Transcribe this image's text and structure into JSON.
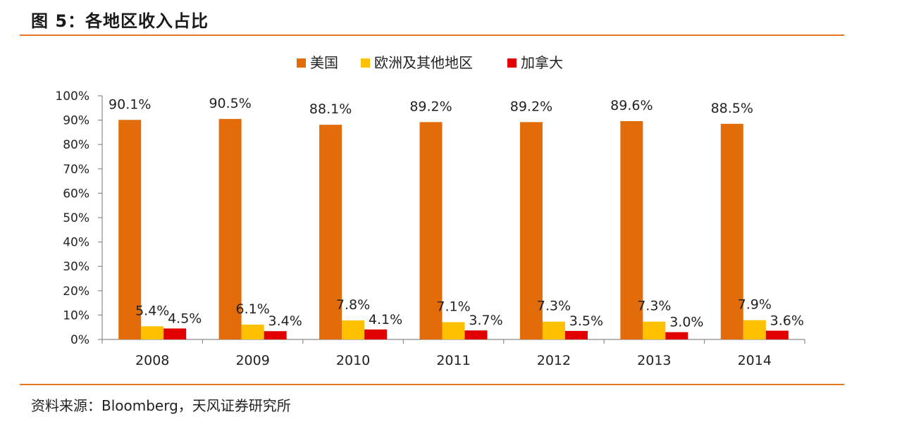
{
  "figure": {
    "title": "图 5：各地区收入占比",
    "source": "资料来源：Bloomberg，天风证券研究所"
  },
  "colors": {
    "us": "#E36C0A",
    "europe": "#FFC000",
    "canada": "#E00000",
    "rule": "#E87722",
    "axis": "#8C8C8C"
  },
  "chart_data": {
    "type": "bar",
    "title": "",
    "xlabel": "",
    "ylabel": "",
    "categories": [
      "2008",
      "2009",
      "2010",
      "2011",
      "2012",
      "2013",
      "2014"
    ],
    "series": [
      {
        "name": "美国",
        "values": [
          90.1,
          90.5,
          88.1,
          89.2,
          89.2,
          89.6,
          88.5
        ],
        "labels": [
          "90.1%",
          "90.5%",
          "88.1%",
          "89.2%",
          "89.2%",
          "89.6%",
          "88.5%"
        ]
      },
      {
        "name": "欧洲及其他地区",
        "values": [
          5.4,
          6.1,
          7.8,
          7.1,
          7.3,
          7.3,
          7.9
        ],
        "labels": [
          "5.4%",
          "6.1%",
          "7.8%",
          "7.1%",
          "7.3%",
          "7.3%",
          "7.9%"
        ]
      },
      {
        "name": "加拿大",
        "values": [
          4.5,
          3.4,
          4.1,
          3.7,
          3.5,
          3.0,
          3.6
        ],
        "labels": [
          "4.5%",
          "3.4%",
          "4.1%",
          "3.7%",
          "3.5%",
          "3.0%",
          "3.6%"
        ]
      }
    ],
    "ylim": [
      0,
      100
    ],
    "yticks": [
      0,
      10,
      20,
      30,
      40,
      50,
      60,
      70,
      80,
      90,
      100
    ],
    "ytick_labels": [
      "0%",
      "10%",
      "20%",
      "30%",
      "40%",
      "50%",
      "60%",
      "70%",
      "80%",
      "90%",
      "100%"
    ],
    "grid": false,
    "legend_position": "top-center"
  }
}
